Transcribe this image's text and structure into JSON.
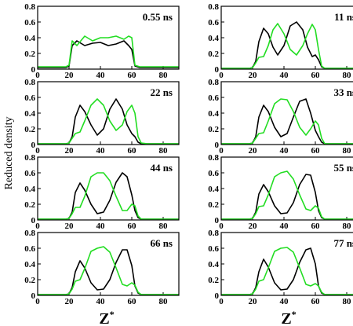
{
  "chart_data": {
    "type": "line",
    "ylabel": "Reduced density",
    "xlabel_main": "Z",
    "xlabel_sup": "*",
    "xlim": [
      0,
      90
    ],
    "ylim": [
      0,
      0.8
    ],
    "x_ticks": [
      0,
      20,
      40,
      60,
      80
    ],
    "y_ticks": [
      0,
      0.2,
      0.4,
      0.6,
      0.8
    ],
    "x_tick_labels": [
      "0",
      "20",
      "40",
      "60",
      "80"
    ],
    "y_tick_labels": [
      "0",
      "0.2",
      "0.4",
      "0.6",
      "0.8"
    ],
    "colors": {
      "series_a": "#000000",
      "series_b": "#22dd22"
    },
    "panels": [
      {
        "label": "0.55 ns",
        "series": [
          {
            "color": "#000000",
            "x": [
              0,
              18,
              20,
              22,
              25,
              30,
              35,
              40,
              45,
              50,
              55,
              58,
              60,
              62,
              65,
              70,
              80,
              90
            ],
            "y": [
              0.02,
              0.02,
              0.04,
              0.3,
              0.36,
              0.3,
              0.33,
              0.34,
              0.3,
              0.32,
              0.36,
              0.3,
              0.25,
              0.04,
              0.02,
              0.02,
              0.02,
              0.02
            ]
          },
          {
            "color": "#22dd22",
            "x": [
              0,
              18,
              20,
              22,
              25,
              30,
              35,
              40,
              45,
              50,
              55,
              58,
              60,
              62,
              65,
              70,
              80,
              90
            ],
            "y": [
              0.03,
              0.03,
              0.05,
              0.36,
              0.3,
              0.42,
              0.36,
              0.4,
              0.4,
              0.42,
              0.38,
              0.42,
              0.4,
              0.05,
              0.03,
              0.03,
              0.03,
              0.03
            ]
          }
        ]
      },
      {
        "label": "11 ns",
        "series": [
          {
            "color": "#000000",
            "x": [
              0,
              18,
              20,
              22,
              24,
              27,
              30,
              33,
              36,
              40,
              44,
              48,
              52,
              55,
              58,
              60,
              62,
              64,
              66,
              70,
              90
            ],
            "y": [
              0.01,
              0.01,
              0.02,
              0.1,
              0.35,
              0.52,
              0.45,
              0.28,
              0.18,
              0.3,
              0.55,
              0.6,
              0.5,
              0.28,
              0.16,
              0.18,
              0.12,
              0.03,
              0.01,
              0.01,
              0.01
            ]
          },
          {
            "color": "#22dd22",
            "x": [
              0,
              18,
              20,
              22,
              24,
              27,
              30,
              33,
              36,
              40,
              44,
              48,
              52,
              55,
              58,
              60,
              62,
              64,
              66,
              70,
              90
            ],
            "y": [
              0.01,
              0.01,
              0.02,
              0.08,
              0.15,
              0.16,
              0.3,
              0.5,
              0.58,
              0.45,
              0.25,
              0.18,
              0.3,
              0.45,
              0.57,
              0.5,
              0.25,
              0.04,
              0.01,
              0.01,
              0.01
            ]
          }
        ]
      },
      {
        "label": "22 ns",
        "series": [
          {
            "color": "#000000",
            "x": [
              0,
              18,
              20,
              22,
              24,
              27,
              30,
              34,
              38,
              42,
              46,
              50,
              54,
              57,
              60,
              62,
              64,
              66,
              70,
              90
            ],
            "y": [
              0.01,
              0.01,
              0.02,
              0.1,
              0.35,
              0.5,
              0.42,
              0.25,
              0.12,
              0.2,
              0.45,
              0.58,
              0.45,
              0.25,
              0.14,
              0.1,
              0.03,
              0.01,
              0.01,
              0.01
            ]
          },
          {
            "color": "#22dd22",
            "x": [
              0,
              18,
              20,
              22,
              24,
              27,
              30,
              34,
              38,
              42,
              46,
              50,
              54,
              57,
              60,
              62,
              64,
              66,
              70,
              90
            ],
            "y": [
              0.01,
              0.01,
              0.02,
              0.08,
              0.14,
              0.16,
              0.3,
              0.5,
              0.58,
              0.5,
              0.3,
              0.18,
              0.25,
              0.42,
              0.5,
              0.4,
              0.1,
              0.02,
              0.01,
              0.01
            ]
          }
        ]
      },
      {
        "label": "33 ns",
        "series": [
          {
            "color": "#000000",
            "x": [
              0,
              18,
              20,
              22,
              24,
              27,
              30,
              34,
              38,
              42,
              46,
              50,
              54,
              57,
              60,
              62,
              64,
              66,
              70,
              90
            ],
            "y": [
              0.01,
              0.01,
              0.02,
              0.1,
              0.35,
              0.5,
              0.42,
              0.22,
              0.1,
              0.14,
              0.35,
              0.55,
              0.58,
              0.4,
              0.18,
              0.1,
              0.03,
              0.01,
              0.01,
              0.01
            ]
          },
          {
            "color": "#22dd22",
            "x": [
              0,
              18,
              20,
              22,
              24,
              27,
              30,
              34,
              38,
              42,
              46,
              50,
              54,
              57,
              60,
              62,
              64,
              66,
              70,
              90
            ],
            "y": [
              0.01,
              0.01,
              0.02,
              0.08,
              0.14,
              0.15,
              0.3,
              0.52,
              0.58,
              0.57,
              0.42,
              0.22,
              0.12,
              0.2,
              0.3,
              0.25,
              0.08,
              0.01,
              0.01,
              0.01
            ]
          }
        ]
      },
      {
        "label": "44 ns",
        "series": [
          {
            "color": "#000000",
            "x": [
              0,
              18,
              20,
              22,
              24,
              27,
              30,
              34,
              38,
              42,
              46,
              50,
              54,
              57,
              60,
              62,
              64,
              66,
              70,
              90
            ],
            "y": [
              0.01,
              0.01,
              0.02,
              0.1,
              0.35,
              0.47,
              0.38,
              0.2,
              0.08,
              0.1,
              0.25,
              0.48,
              0.6,
              0.55,
              0.32,
              0.12,
              0.03,
              0.01,
              0.01,
              0.01
            ]
          },
          {
            "color": "#22dd22",
            "x": [
              0,
              18,
              20,
              22,
              24,
              27,
              30,
              34,
              38,
              42,
              46,
              50,
              54,
              57,
              60,
              62,
              64,
              66,
              70,
              90
            ],
            "y": [
              0.01,
              0.01,
              0.02,
              0.08,
              0.16,
              0.16,
              0.3,
              0.55,
              0.6,
              0.6,
              0.5,
              0.3,
              0.12,
              0.12,
              0.2,
              0.18,
              0.05,
              0.01,
              0.01,
              0.01
            ]
          }
        ]
      },
      {
        "label": "55 ns",
        "series": [
          {
            "color": "#000000",
            "x": [
              0,
              18,
              20,
              22,
              24,
              27,
              30,
              34,
              38,
              42,
              46,
              50,
              54,
              57,
              60,
              62,
              64,
              66,
              70,
              90
            ],
            "y": [
              0.01,
              0.01,
              0.02,
              0.1,
              0.33,
              0.45,
              0.36,
              0.18,
              0.08,
              0.09,
              0.22,
              0.45,
              0.58,
              0.57,
              0.35,
              0.12,
              0.03,
              0.01,
              0.01,
              0.01
            ]
          },
          {
            "color": "#22dd22",
            "x": [
              0,
              18,
              20,
              22,
              24,
              27,
              30,
              34,
              38,
              42,
              46,
              50,
              54,
              57,
              60,
              62,
              64,
              66,
              70,
              90
            ],
            "y": [
              0.01,
              0.01,
              0.02,
              0.08,
              0.17,
              0.18,
              0.32,
              0.55,
              0.6,
              0.62,
              0.52,
              0.32,
              0.14,
              0.12,
              0.18,
              0.15,
              0.04,
              0.01,
              0.01,
              0.01
            ]
          }
        ]
      },
      {
        "label": "66 ns",
        "series": [
          {
            "color": "#000000",
            "x": [
              0,
              18,
              20,
              22,
              24,
              27,
              30,
              34,
              38,
              42,
              46,
              50,
              54,
              57,
              60,
              62,
              64,
              66,
              70,
              90
            ],
            "y": [
              0.01,
              0.01,
              0.02,
              0.1,
              0.3,
              0.44,
              0.35,
              0.16,
              0.07,
              0.08,
              0.2,
              0.42,
              0.58,
              0.58,
              0.38,
              0.12,
              0.03,
              0.01,
              0.01,
              0.01
            ]
          },
          {
            "color": "#22dd22",
            "x": [
              0,
              18,
              20,
              22,
              24,
              27,
              30,
              34,
              38,
              42,
              46,
              50,
              54,
              57,
              60,
              62,
              64,
              66,
              70,
              90
            ],
            "y": [
              0.01,
              0.01,
              0.02,
              0.08,
              0.18,
              0.2,
              0.34,
              0.56,
              0.6,
              0.62,
              0.55,
              0.35,
              0.14,
              0.12,
              0.16,
              0.13,
              0.04,
              0.01,
              0.01,
              0.01
            ]
          }
        ]
      },
      {
        "label": "77 ns",
        "series": [
          {
            "color": "#000000",
            "x": [
              0,
              18,
              20,
              22,
              24,
              27,
              30,
              34,
              38,
              42,
              46,
              50,
              54,
              57,
              60,
              62,
              64,
              66,
              70,
              90
            ],
            "y": [
              0.01,
              0.01,
              0.02,
              0.1,
              0.3,
              0.46,
              0.36,
              0.16,
              0.07,
              0.08,
              0.2,
              0.42,
              0.58,
              0.6,
              0.4,
              0.12,
              0.03,
              0.01,
              0.01,
              0.01
            ]
          },
          {
            "color": "#22dd22",
            "x": [
              0,
              18,
              20,
              22,
              24,
              27,
              30,
              34,
              38,
              42,
              46,
              50,
              54,
              57,
              60,
              62,
              64,
              66,
              70,
              90
            ],
            "y": [
              0.01,
              0.01,
              0.02,
              0.08,
              0.18,
              0.2,
              0.35,
              0.56,
              0.6,
              0.61,
              0.55,
              0.35,
              0.14,
              0.12,
              0.15,
              0.12,
              0.04,
              0.01,
              0.01,
              0.01
            ]
          }
        ]
      }
    ]
  }
}
